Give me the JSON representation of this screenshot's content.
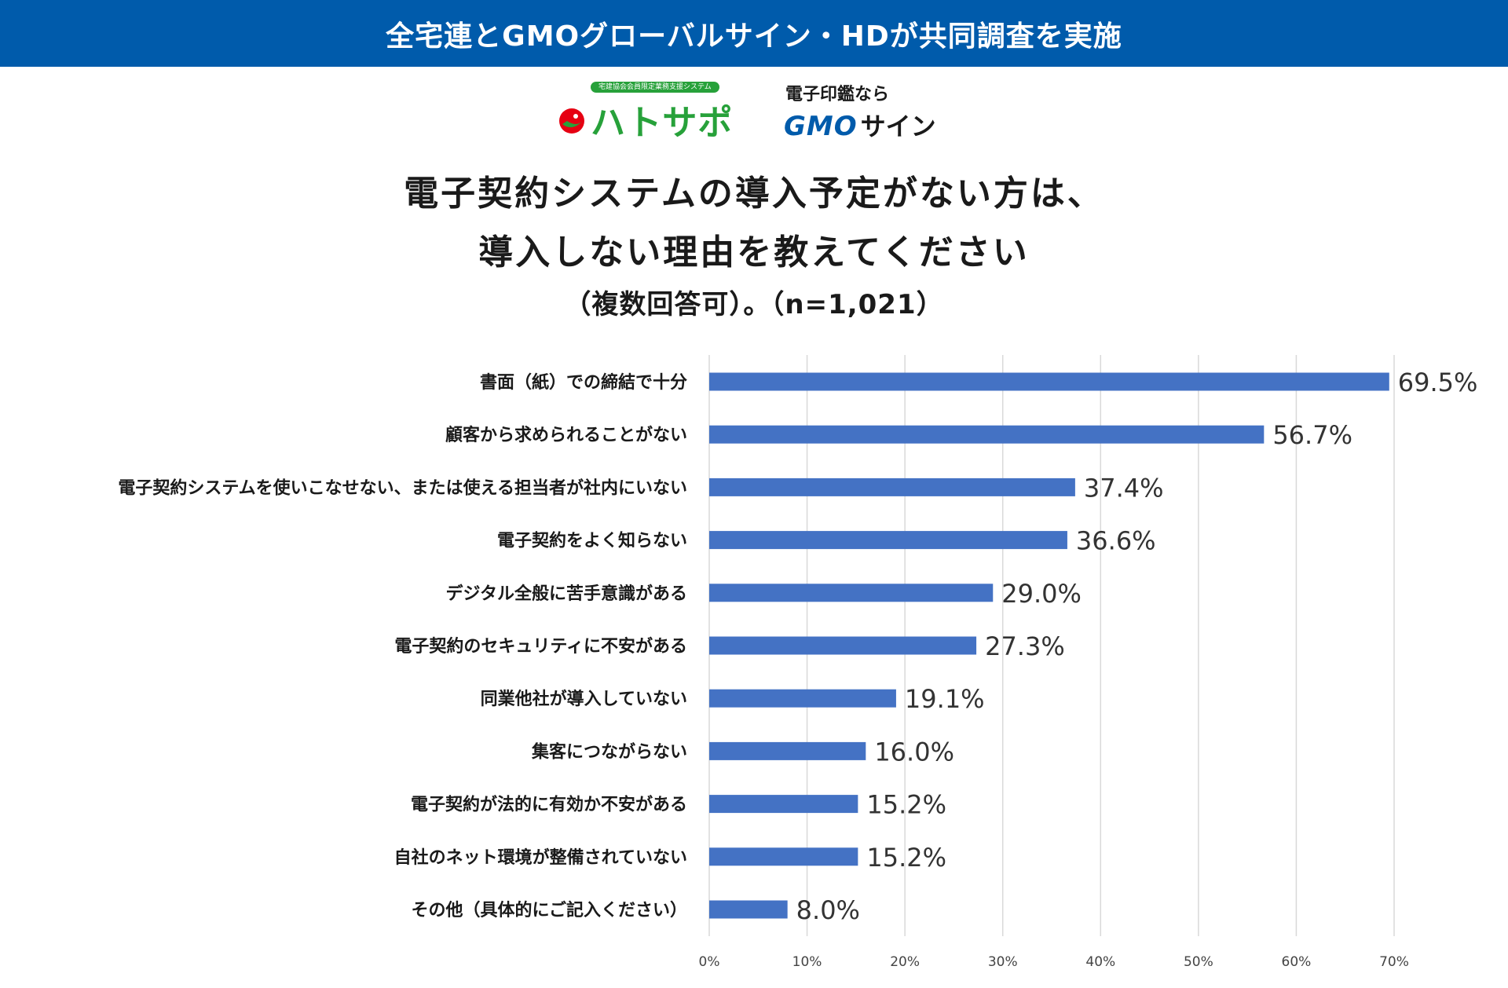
{
  "banner": {
    "text": "全宅連とGMOグローバルサイン・HDが共同調査を実施"
  },
  "logos": {
    "hatosapo": {
      "tagline": "宅建協会会員限定業務支援システム",
      "name": "ハトサポ"
    },
    "gmo_sign": {
      "subtitle": "電子印鑑なら",
      "brand": "GMO",
      "product": "サイン"
    }
  },
  "title": {
    "line1": "電子契約システムの導入予定がない方は、",
    "line2": "導入しない理由を教えてください",
    "line3": "（複数回答可）。（n=1,021）"
  },
  "colors": {
    "banner": "#005bab",
    "bar": "#4472c4",
    "grid": "#d9d9d9"
  },
  "chart_data": {
    "type": "bar",
    "orientation": "horizontal",
    "categories": [
      "書面（紙）での締結で十分",
      "顧客から求められることがない",
      "電子契約システムを使いこなせない、または使える担当者が社内にいない",
      "電子契約をよく知らない",
      "デジタル全般に苦手意識がある",
      "電子契約のセキュリティに不安がある",
      "同業他社が導入していない",
      "集客につながらない",
      "電子契約が法的に有効か不安がある",
      "自社のネット環境が整備されていない",
      "その他（具体的にご記入ください）"
    ],
    "values": [
      69.5,
      56.7,
      37.4,
      36.6,
      29.0,
      27.3,
      19.1,
      16.0,
      15.2,
      15.2,
      8.0
    ],
    "value_labels": [
      "69.5%",
      "56.7%",
      "37.4%",
      "36.6%",
      "29.0%",
      "27.3%",
      "19.1%",
      "16.0%",
      "15.2%",
      "15.2%",
      "8.0%"
    ],
    "xlim": [
      0,
      70
    ],
    "xticks": [
      0,
      10,
      20,
      30,
      40,
      50,
      60,
      70
    ],
    "xtick_labels": [
      "0%",
      "10%",
      "20%",
      "30%",
      "40%",
      "50%",
      "60%",
      "70%"
    ],
    "grid": true,
    "legend": "none"
  }
}
